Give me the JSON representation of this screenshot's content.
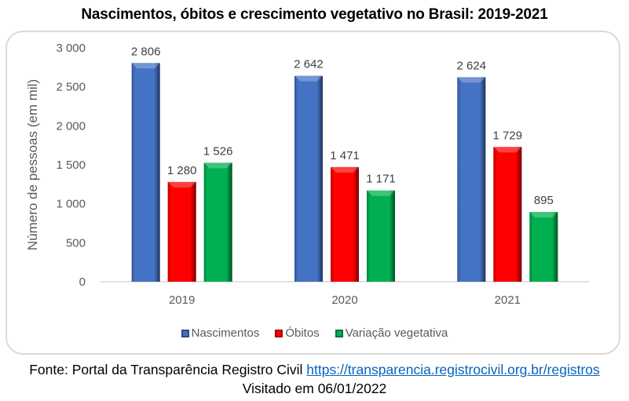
{
  "chart_data": {
    "type": "bar",
    "title": "Nascimentos, óbitos e crescimento vegetativo no Brasil: 2019-2021",
    "xlabel": "",
    "ylabel": "Número de pessoas (em mil)",
    "categories": [
      "2019",
      "2020",
      "2021"
    ],
    "series": [
      {
        "name": "Nascimentos",
        "color": "#4472c4",
        "values": [
          2806,
          2642,
          2624
        ],
        "labels": [
          "2 806",
          "2 642",
          "2 624"
        ]
      },
      {
        "name": "Óbitos",
        "color": "#ff0000",
        "values": [
          1280,
          1471,
          1729
        ],
        "labels": [
          "1 280",
          "1 471",
          "1 729"
        ]
      },
      {
        "name": "Variação vegetativa",
        "color": "#00b050",
        "values": [
          1526,
          1171,
          895
        ],
        "labels": [
          "1 526",
          "1 171",
          "895"
        ]
      }
    ],
    "ylim": [
      0,
      3000
    ],
    "yticks": [
      0,
      500,
      1000,
      1500,
      2000,
      2500,
      3000
    ],
    "ytick_labels": [
      "0",
      "500",
      "1 000",
      "1 500",
      "2 000",
      "2 500",
      "3 000"
    ],
    "grid": false,
    "legend_position": "bottom"
  },
  "source": {
    "prefix": "Fonte: Portal da Transparência Registro Civil ",
    "link_text": "https://transparencia.registrocivil.org.br/registros",
    "visited": "Visitado em 06/01/2022"
  }
}
